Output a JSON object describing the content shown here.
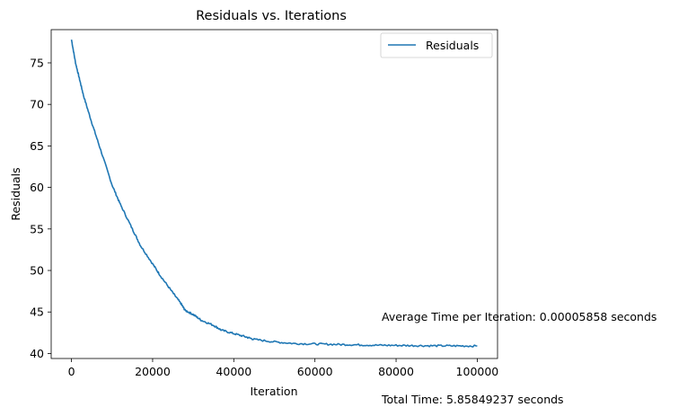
{
  "chart_data": {
    "type": "line",
    "title": "Residuals vs. Iterations",
    "xlabel": "Iteration",
    "ylabel": "Residuals",
    "xlim": [
      -5000,
      105000
    ],
    "ylim": [
      39.4,
      79.0
    ],
    "xticks": [
      0,
      20000,
      40000,
      60000,
      80000,
      100000
    ],
    "yticks": [
      40,
      45,
      50,
      55,
      60,
      65,
      70,
      75
    ],
    "grid": false,
    "legend": {
      "position": "top-right",
      "entries": [
        "Residuals"
      ]
    },
    "series": [
      {
        "name": "Residuals",
        "color": "#1f77b4",
        "x": [
          0,
          1000,
          2000,
          3000,
          5000,
          7000,
          10000,
          12000,
          15000,
          17000,
          20000,
          22000,
          25000,
          27000,
          28000,
          30000,
          32000,
          35000,
          37000,
          40000,
          43000,
          45000,
          50000,
          55000,
          60000,
          65000,
          70000,
          75000,
          80000,
          85000,
          90000,
          95000,
          100000
        ],
        "y": [
          77.8,
          75.0,
          73.0,
          71.0,
          67.8,
          64.8,
          60.3,
          58.0,
          55.0,
          53.0,
          50.8,
          49.3,
          47.3,
          46.0,
          45.2,
          44.7,
          44.0,
          43.4,
          42.8,
          42.4,
          42.0,
          41.7,
          41.4,
          41.2,
          41.15,
          41.1,
          41.05,
          41.0,
          40.98,
          40.95,
          40.93,
          40.92,
          40.9
        ]
      }
    ],
    "annotations": [
      "Average Time per Iteration: 0.00005858 seconds",
      "Total Time: 5.85849237 seconds"
    ]
  }
}
